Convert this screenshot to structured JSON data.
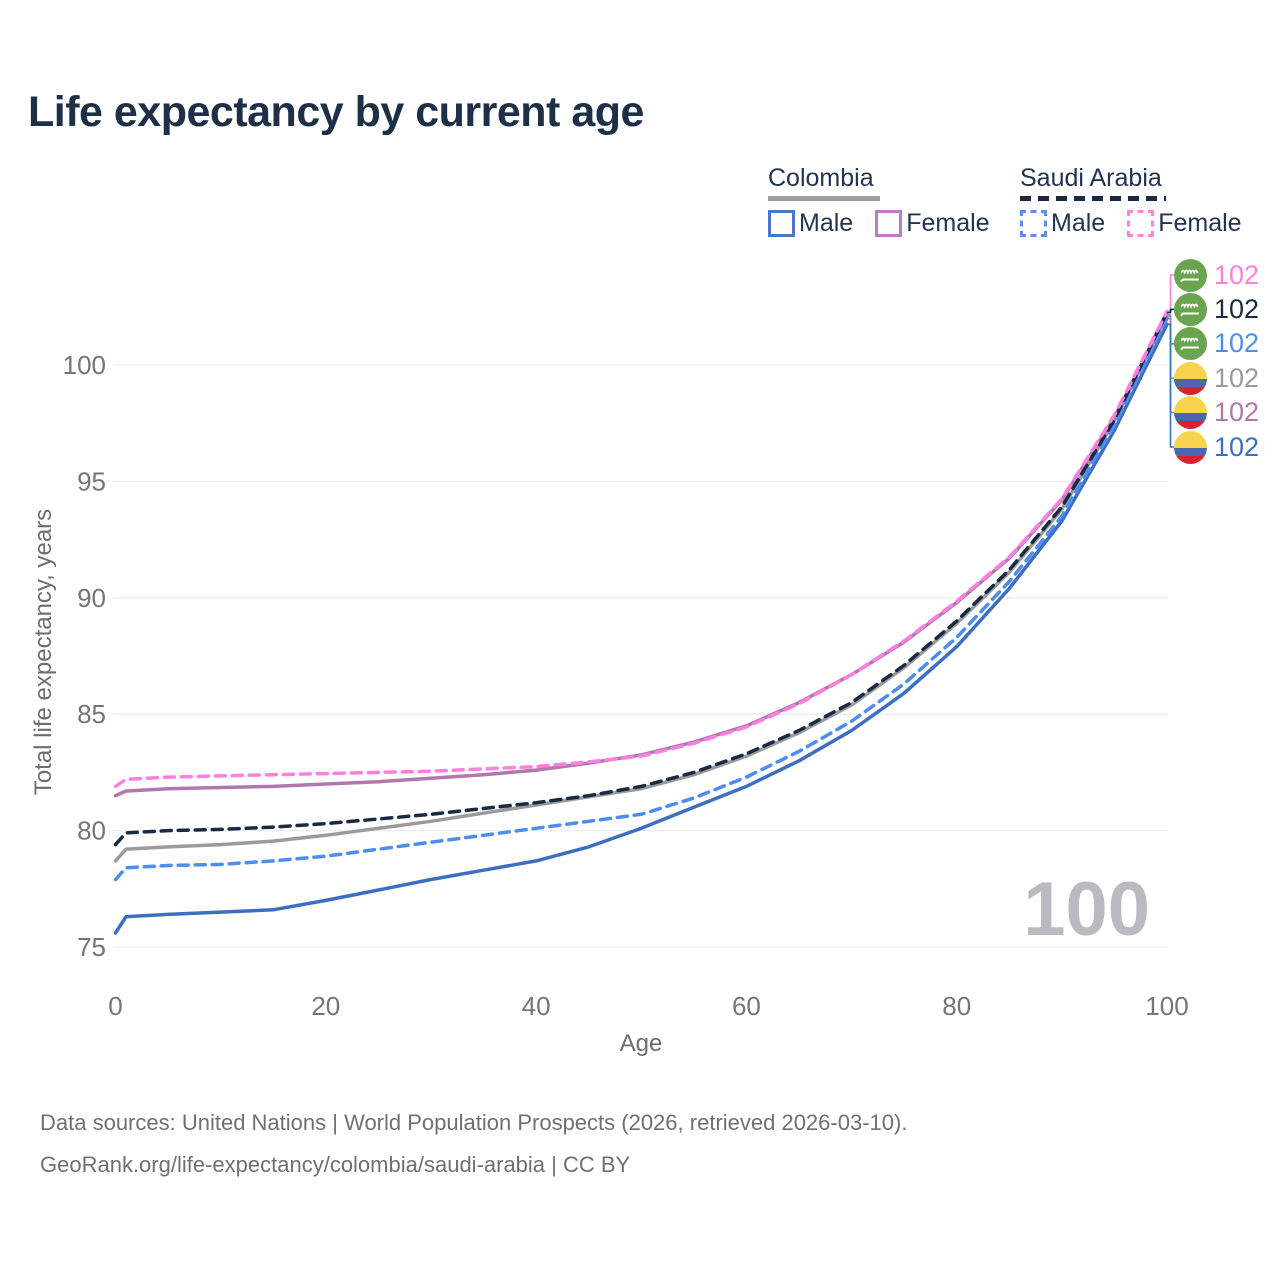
{
  "title": "Life expectancy by current age",
  "legend": {
    "groups": [
      {
        "country": "Colombia",
        "line_style": "solid",
        "underline_color": "#9e9e9e",
        "items": [
          {
            "label": "Male",
            "color": "#4a77c9",
            "dashed": false
          },
          {
            "label": "Female",
            "color": "#bd7fc0",
            "dashed": false
          }
        ]
      },
      {
        "country": "Saudi Arabia",
        "line_style": "dashed",
        "underline_color": "#1b2a44",
        "items": [
          {
            "label": "Male",
            "color": "#5a8fe8",
            "dashed": true
          },
          {
            "label": "Female",
            "color": "#ff85e0",
            "dashed": true
          }
        ]
      }
    ]
  },
  "chart_data": {
    "type": "line",
    "title": "Life expectancy by current age",
    "xlabel": "Age",
    "ylabel": "Total life expectancy, years",
    "xlim": [
      0,
      100
    ],
    "ylim": [
      75,
      100
    ],
    "xticks": [
      0,
      20,
      40,
      60,
      80,
      100
    ],
    "yticks": [
      75,
      80,
      85,
      90,
      95,
      100
    ],
    "grid": "horizontal",
    "legend_position": "top-right",
    "ages": [
      0,
      1,
      5,
      10,
      15,
      20,
      25,
      30,
      35,
      40,
      45,
      50,
      55,
      60,
      65,
      70,
      75,
      80,
      85,
      90,
      95,
      100
    ],
    "series": [
      {
        "key": "colombia_male",
        "name": "Colombia Male",
        "country": "Colombia",
        "sex": "Male",
        "color": "#3d6fc1",
        "dashed": false,
        "values": [
          75.6,
          76.3,
          76.4,
          76.5,
          76.6,
          77.0,
          77.45,
          77.9,
          78.3,
          78.7,
          79.3,
          80.1,
          81.0,
          81.9,
          83.0,
          84.3,
          85.9,
          87.9,
          90.4,
          93.3,
          97.2,
          101.75
        ]
      },
      {
        "key": "colombia_all",
        "name": "Colombia Both sexes",
        "country": "Colombia",
        "sex": "Both",
        "color": "#9b9b9b",
        "dashed": false,
        "values": [
          78.7,
          79.2,
          79.3,
          79.4,
          79.55,
          79.8,
          80.1,
          80.4,
          80.75,
          81.1,
          81.45,
          81.8,
          82.4,
          83.2,
          84.2,
          85.4,
          87.0,
          88.9,
          91.1,
          93.8,
          97.6,
          102.1
        ]
      },
      {
        "key": "colombia_female",
        "name": "Colombia Female",
        "country": "Colombia",
        "sex": "Female",
        "color": "#b177ae",
        "dashed": false,
        "values": [
          81.5,
          81.7,
          81.8,
          81.85,
          81.9,
          82.0,
          82.1,
          82.25,
          82.4,
          82.6,
          82.9,
          83.25,
          83.8,
          84.5,
          85.5,
          86.7,
          88.1,
          89.8,
          91.7,
          94.2,
          97.75,
          102.15
        ]
      },
      {
        "key": "saudi_male",
        "name": "Saudi Arabia Male",
        "country": "Saudi Arabia",
        "sex": "Male",
        "color": "#4d8df0",
        "dashed": true,
        "values": [
          77.9,
          78.4,
          78.5,
          78.55,
          78.7,
          78.9,
          79.2,
          79.5,
          79.8,
          80.1,
          80.4,
          80.7,
          81.4,
          82.3,
          83.4,
          84.7,
          86.3,
          88.3,
          90.7,
          93.5,
          97.4,
          102.0
        ]
      },
      {
        "key": "saudi_all",
        "name": "Saudi Arabia Both sexes",
        "country": "Saudi Arabia",
        "sex": "Both",
        "color": "#1b2a44",
        "dashed": true,
        "values": [
          79.4,
          79.9,
          80.0,
          80.05,
          80.15,
          80.3,
          80.5,
          80.7,
          80.95,
          81.2,
          81.5,
          81.9,
          82.5,
          83.3,
          84.3,
          85.5,
          87.1,
          89.0,
          91.2,
          93.9,
          97.65,
          102.25
        ]
      },
      {
        "key": "saudi_female",
        "name": "Saudi Arabia Female",
        "country": "Saudi Arabia",
        "sex": "Female",
        "color": "#ff80df",
        "dashed": true,
        "values": [
          81.9,
          82.2,
          82.3,
          82.35,
          82.4,
          82.45,
          82.5,
          82.55,
          82.65,
          82.75,
          82.95,
          83.2,
          83.75,
          84.45,
          85.45,
          86.7,
          88.15,
          89.85,
          91.75,
          94.25,
          97.85,
          102.3
        ]
      }
    ]
  },
  "end_labels": [
    {
      "series": "saudi_female",
      "flag": "saudi-arabia",
      "value": "102",
      "color": "#ff80df"
    },
    {
      "series": "saudi_all",
      "flag": "saudi-arabia",
      "value": "102",
      "color": "#1b2a44"
    },
    {
      "series": "saudi_male",
      "flag": "saudi-arabia",
      "value": "102",
      "color": "#4d8df0"
    },
    {
      "series": "colombia_all",
      "flag": "colombia",
      "value": "102",
      "color": "#9b9b9b"
    },
    {
      "series": "colombia_female",
      "flag": "colombia",
      "value": "102",
      "color": "#b177ae"
    },
    {
      "series": "colombia_male",
      "flag": "colombia",
      "value": "102",
      "color": "#3d6fc1"
    }
  ],
  "watermark": "100",
  "footer": {
    "line1": "Data sources: United Nations | World Population Prospects (2026, retrieved 2026-03-10).",
    "line2": "GeoRank.org/life-expectancy/colombia/saudi-arabia | CC BY"
  },
  "colors": {
    "grid": "#ececec",
    "tick_label": "#757575",
    "axis_title": "#6d6d6d",
    "watermark": "#b9bbc0",
    "title": "#1e3048",
    "footer": "#707070",
    "legend_text": "#223450",
    "saudi_flag_green": "#6ba450",
    "colombia_flag_yellow": "#f7d44e",
    "colombia_flag_blue": "#4a67b0",
    "colombia_flag_red": "#d8232e"
  }
}
